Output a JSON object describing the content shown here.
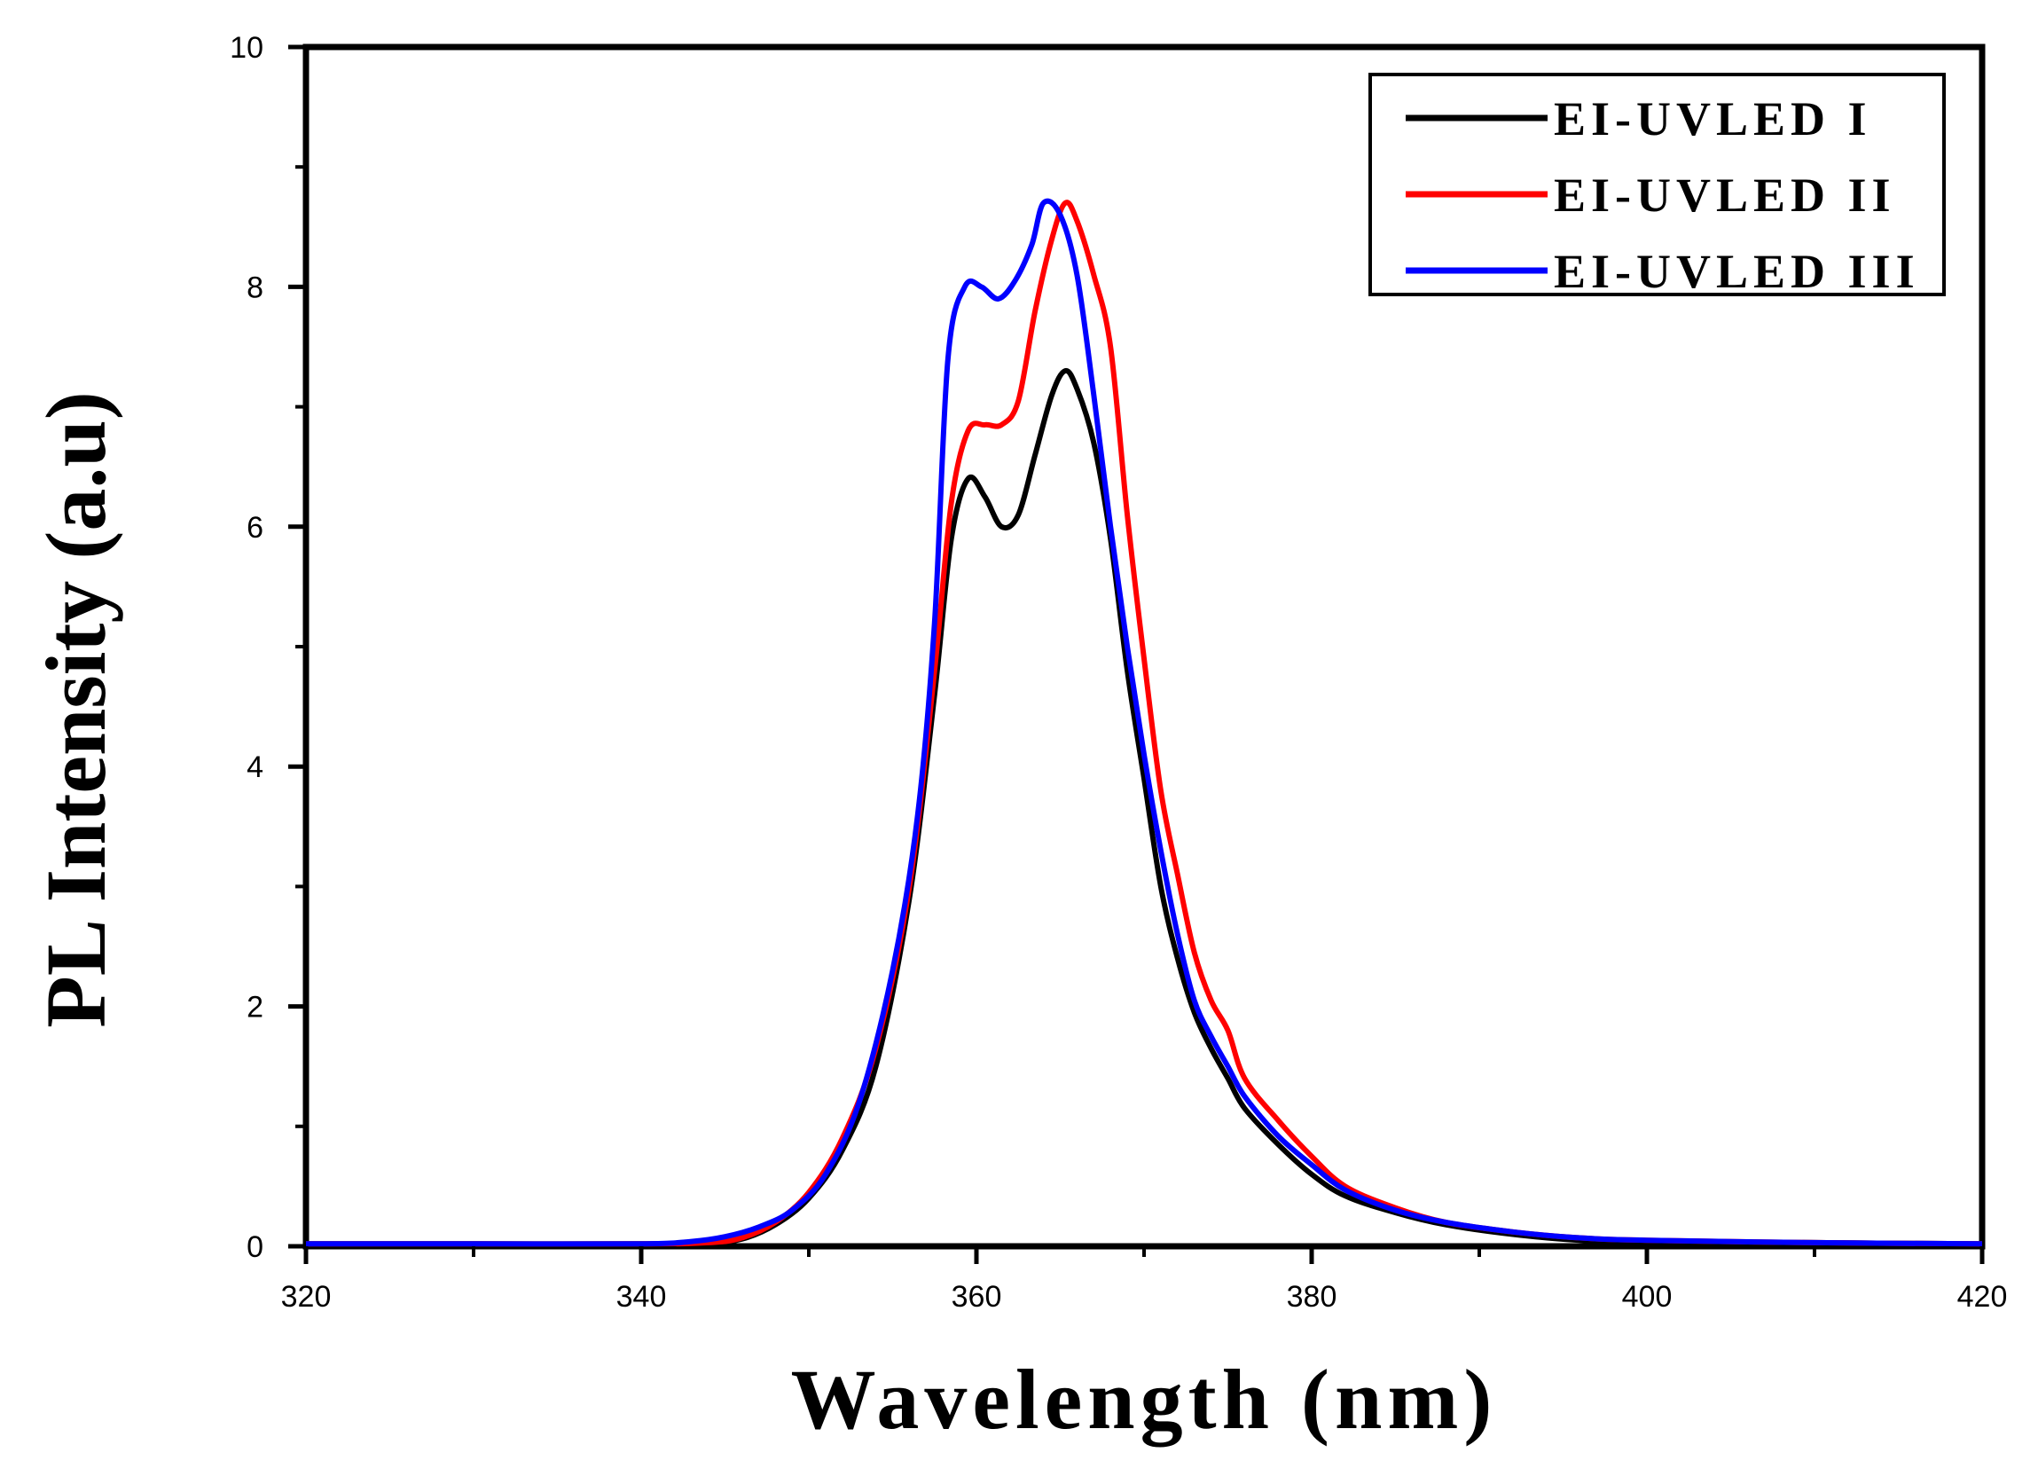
{
  "chart_data": {
    "type": "line",
    "title": "",
    "xlabel": "Wavelength (nm)",
    "ylabel": "PL Intensity (a.u)",
    "xlim": [
      320,
      420
    ],
    "ylim": [
      0,
      10
    ],
    "xticks": [
      320,
      340,
      360,
      380,
      400,
      420
    ],
    "yticks": [
      0,
      2,
      4,
      6,
      8,
      10
    ],
    "grid": false,
    "legend": "top-right",
    "series": [
      {
        "name": "EI-UVLED I",
        "color": "#000000",
        "points": [
          [
            320,
            0.02
          ],
          [
            330,
            0.02
          ],
          [
            340,
            0.02
          ],
          [
            344,
            0.03
          ],
          [
            346,
            0.06
          ],
          [
            348,
            0.18
          ],
          [
            350,
            0.4
          ],
          [
            352,
            0.8
          ],
          [
            354,
            1.5
          ],
          [
            356,
            2.9
          ],
          [
            357.5,
            4.6
          ],
          [
            358.5,
            5.9
          ],
          [
            359.5,
            6.4
          ],
          [
            360.5,
            6.25
          ],
          [
            361.5,
            6.0
          ],
          [
            362.5,
            6.1
          ],
          [
            363.5,
            6.6
          ],
          [
            364.5,
            7.1
          ],
          [
            365.3,
            7.3
          ],
          [
            366,
            7.15
          ],
          [
            367,
            6.7
          ],
          [
            368,
            5.9
          ],
          [
            369,
            4.8
          ],
          [
            370,
            3.9
          ],
          [
            371,
            3.0
          ],
          [
            372,
            2.4
          ],
          [
            373,
            1.95
          ],
          [
            374,
            1.65
          ],
          [
            375,
            1.4
          ],
          [
            376,
            1.15
          ],
          [
            378,
            0.85
          ],
          [
            380,
            0.6
          ],
          [
            382,
            0.42
          ],
          [
            385,
            0.28
          ],
          [
            388,
            0.18
          ],
          [
            392,
            0.1
          ],
          [
            396,
            0.05
          ],
          [
            400,
            0.04
          ],
          [
            410,
            0.03
          ],
          [
            420,
            0.02
          ]
        ]
      },
      {
        "name": "EI-UVLED II",
        "color": "#ff0000",
        "points": [
          [
            320,
            0.02
          ],
          [
            330,
            0.02
          ],
          [
            340,
            0.02
          ],
          [
            344,
            0.03
          ],
          [
            346,
            0.07
          ],
          [
            348,
            0.2
          ],
          [
            350,
            0.45
          ],
          [
            352,
            0.9
          ],
          [
            354,
            1.65
          ],
          [
            356,
            3.0
          ],
          [
            357.5,
            4.8
          ],
          [
            358.5,
            6.2
          ],
          [
            359.5,
            6.8
          ],
          [
            360.5,
            6.85
          ],
          [
            361.5,
            6.85
          ],
          [
            362.5,
            7.05
          ],
          [
            363.5,
            7.8
          ],
          [
            364.5,
            8.4
          ],
          [
            365.3,
            8.7
          ],
          [
            366,
            8.55
          ],
          [
            367,
            8.1
          ],
          [
            368,
            7.5
          ],
          [
            369,
            6.1
          ],
          [
            370,
            4.9
          ],
          [
            371,
            3.8
          ],
          [
            372,
            3.1
          ],
          [
            373,
            2.45
          ],
          [
            374,
            2.05
          ],
          [
            375,
            1.8
          ],
          [
            376,
            1.4
          ],
          [
            378,
            1.05
          ],
          [
            380,
            0.75
          ],
          [
            382,
            0.5
          ],
          [
            385,
            0.32
          ],
          [
            388,
            0.2
          ],
          [
            392,
            0.12
          ],
          [
            396,
            0.07
          ],
          [
            400,
            0.05
          ],
          [
            410,
            0.03
          ],
          [
            420,
            0.02
          ]
        ]
      },
      {
        "name": "EI-UVLED III",
        "color": "#0000ff",
        "points": [
          [
            320,
            0.02
          ],
          [
            330,
            0.02
          ],
          [
            340,
            0.02
          ],
          [
            343,
            0.04
          ],
          [
            345,
            0.08
          ],
          [
            347,
            0.16
          ],
          [
            349,
            0.3
          ],
          [
            351,
            0.6
          ],
          [
            353,
            1.2
          ],
          [
            355,
            2.3
          ],
          [
            356.5,
            3.6
          ],
          [
            357.5,
            5.2
          ],
          [
            358.3,
            7.4
          ],
          [
            359.3,
            8.0
          ],
          [
            360.3,
            8.0
          ],
          [
            361.3,
            7.9
          ],
          [
            362.3,
            8.05
          ],
          [
            363.3,
            8.35
          ],
          [
            364,
            8.7
          ],
          [
            365,
            8.6
          ],
          [
            366,
            8.1
          ],
          [
            367,
            7.1
          ],
          [
            368,
            6.0
          ],
          [
            369,
            5.0
          ],
          [
            370,
            4.1
          ],
          [
            371,
            3.3
          ],
          [
            372,
            2.6
          ],
          [
            373,
            2.05
          ],
          [
            374,
            1.75
          ],
          [
            375,
            1.5
          ],
          [
            376,
            1.25
          ],
          [
            378,
            0.92
          ],
          [
            380,
            0.68
          ],
          [
            382,
            0.47
          ],
          [
            385,
            0.3
          ],
          [
            388,
            0.2
          ],
          [
            392,
            0.12
          ],
          [
            396,
            0.07
          ],
          [
            400,
            0.05
          ],
          [
            410,
            0.03
          ],
          [
            420,
            0.02
          ]
        ]
      }
    ]
  }
}
